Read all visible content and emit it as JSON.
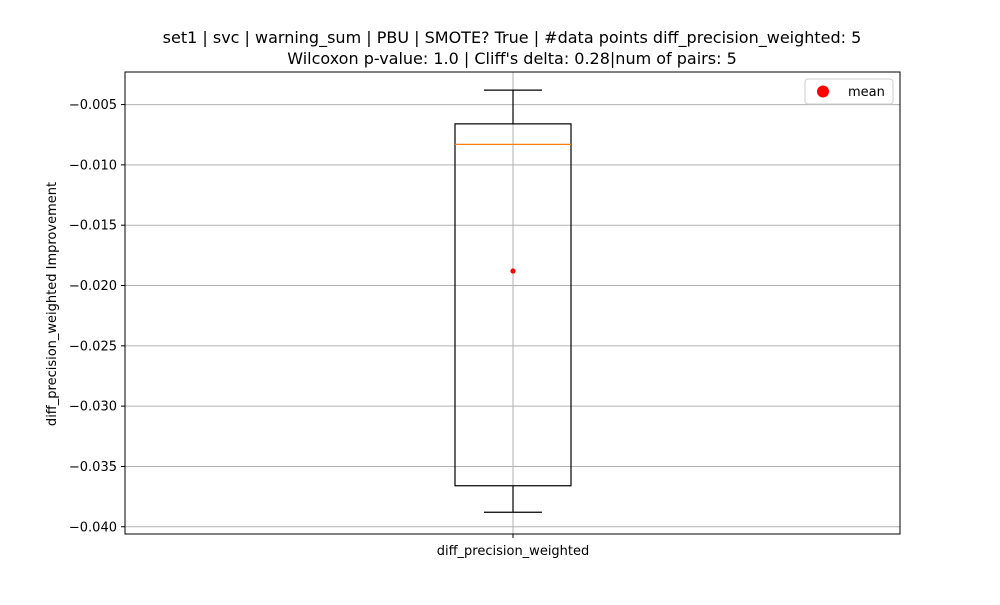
{
  "chart_data": {
    "type": "box",
    "title_line1": "set1 | svc | warning_sum | PBU | SMOTE? True | #data points diff_precision_weighted: 5",
    "title_line2": "Wilcoxon p-value: 1.0 | Cliff's delta: 0.28|num of pairs: 5",
    "xlabel": "",
    "ylabel": "diff_precision_weighted Improvement",
    "categories": [
      "diff_precision_weighted"
    ],
    "box": {
      "whisker_low": -0.0388,
      "q1": -0.0366,
      "median": -0.0083,
      "q3": -0.0066,
      "whisker_high": -0.0038,
      "mean": -0.0188
    },
    "ylim": [
      -0.0406,
      -0.0023
    ],
    "yticks": [
      -0.005,
      -0.01,
      -0.015,
      -0.02,
      -0.025,
      -0.03,
      -0.035,
      -0.04
    ],
    "ytick_labels": [
      "−0.005",
      "−0.010",
      "−0.015",
      "−0.020",
      "−0.025",
      "−0.030",
      "−0.035",
      "−0.040"
    ],
    "grid": true,
    "legend": {
      "placement": "top-right",
      "entries": [
        {
          "label": "mean",
          "color": "#ff0000",
          "marker": "circle"
        }
      ]
    },
    "colors": {
      "box": "#000000",
      "median": "#ff7f0e",
      "mean": "#ff0000",
      "grid": "#b0b0b0"
    }
  }
}
